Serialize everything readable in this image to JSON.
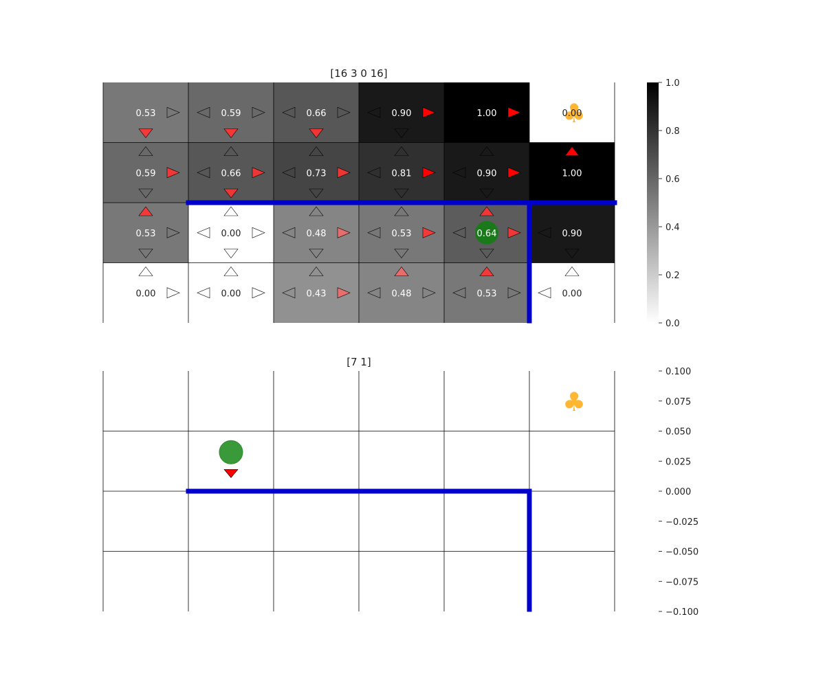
{
  "colors": {
    "wall": "#0000cc",
    "agent": "#1a7a1a",
    "agent_light": "#3a9a3a",
    "goal": "#ffb733",
    "arrow_best": "#ff0000",
    "grid_line": "#000000"
  },
  "chart_data": [
    {
      "type": "heatmap",
      "title": "[16 3 0 16]",
      "rows": 4,
      "cols": 6,
      "colormap": "Greys",
      "vmin": 0.0,
      "vmax": 1.0,
      "colorbar_ticks": [
        "0.0",
        "0.2",
        "0.4",
        "0.6",
        "0.8",
        "1.0"
      ],
      "values": [
        [
          0.53,
          0.59,
          0.66,
          0.9,
          1.0,
          null
        ],
        [
          0.59,
          0.66,
          0.73,
          0.81,
          0.9,
          1.0
        ],
        [
          0.53,
          0.0,
          0.48,
          0.53,
          0.64,
          0.9
        ],
        [
          0.0,
          0.0,
          0.43,
          0.48,
          0.53,
          0.0
        ]
      ],
      "labels": [
        [
          "0.53",
          "0.59",
          "0.66",
          "0.90",
          "1.00",
          "0.00"
        ],
        [
          "0.59",
          "0.66",
          "0.73",
          "0.81",
          "0.90",
          "1.00"
        ],
        [
          "0.53",
          "0.00",
          "0.48",
          "0.53",
          "0.64",
          "0.90"
        ],
        [
          "0.00",
          "0.00",
          "0.43",
          "0.48",
          "0.53",
          "0.00"
        ]
      ],
      "arrows": [
        [
          {
            "r": 0.0,
            "d": 0.8
          },
          {
            "l": 0.0,
            "r": 0.0,
            "d": 0.8
          },
          {
            "l": 0.0,
            "r": 0.0,
            "d": 0.8
          },
          {
            "l": 0.0,
            "r": 1.0,
            "d": 0.0
          },
          {
            "r": 1.0
          },
          {}
        ],
        [
          {
            "u": 0.0,
            "r": 0.8,
            "d": 0.0
          },
          {
            "u": 0.0,
            "l": 0.0,
            "r": 0.8,
            "d": 0.8
          },
          {
            "u": 0.0,
            "l": 0.0,
            "r": 0.8,
            "d": 0.0
          },
          {
            "u": 0.0,
            "l": 0.0,
            "r": 1.0,
            "d": 0.0
          },
          {
            "u": 0.0,
            "l": 0.0,
            "r": 1.0,
            "d": 0.0
          },
          {
            "u": 1.0
          }
        ],
        [
          {
            "u": 0.8,
            "r": 0.0,
            "d": 0.0
          },
          {
            "u": 0.0,
            "l": 0.0,
            "r": 0.0,
            "d": 0.0
          },
          {
            "u": 0.0,
            "l": 0.0,
            "r": 0.6,
            "d": 0.0
          },
          {
            "u": 0.0,
            "l": 0.0,
            "r": 0.8,
            "d": 0.0
          },
          {
            "u": 0.8,
            "l": 0.0,
            "r": 0.8,
            "d": 0.0
          },
          {
            "l": 0.0,
            "d": 0.0
          }
        ],
        [
          {
            "u": 0.0,
            "r": 0.0
          },
          {
            "u": 0.0,
            "l": 0.0,
            "r": 0.0
          },
          {
            "u": 0.0,
            "l": 0.0,
            "r": 0.6
          },
          {
            "u": 0.6,
            "l": 0.0,
            "r": 0.0
          },
          {
            "u": 0.8,
            "l": 0.0,
            "r": 0.0
          },
          {
            "u": 0.0,
            "l": 0.0
          }
        ]
      ],
      "agent_cell": [
        2,
        4
      ],
      "goal_cell": [
        0,
        5
      ],
      "goal_symbol": "♣",
      "walls": [
        [
          [
            1,
            2
          ],
          [
            6,
            2
          ]
        ],
        [
          [
            5,
            2
          ],
          [
            5,
            4
          ]
        ]
      ]
    },
    {
      "type": "grid",
      "title": "[7 1]",
      "rows": 4,
      "cols": 6,
      "ylim": [
        -0.1,
        0.1
      ],
      "yticks": [
        "0.100",
        "0.075",
        "0.050",
        "0.025",
        "0.000",
        "−0.025",
        "−0.050",
        "−0.075",
        "−0.100"
      ],
      "agent_cell": [
        1,
        1
      ],
      "agent_action": "down",
      "goal_cell": [
        0,
        5
      ],
      "goal_symbol": "♣",
      "walls": [
        [
          [
            1,
            2
          ],
          [
            5,
            2
          ]
        ],
        [
          [
            5,
            2
          ],
          [
            5,
            4
          ]
        ]
      ]
    }
  ]
}
